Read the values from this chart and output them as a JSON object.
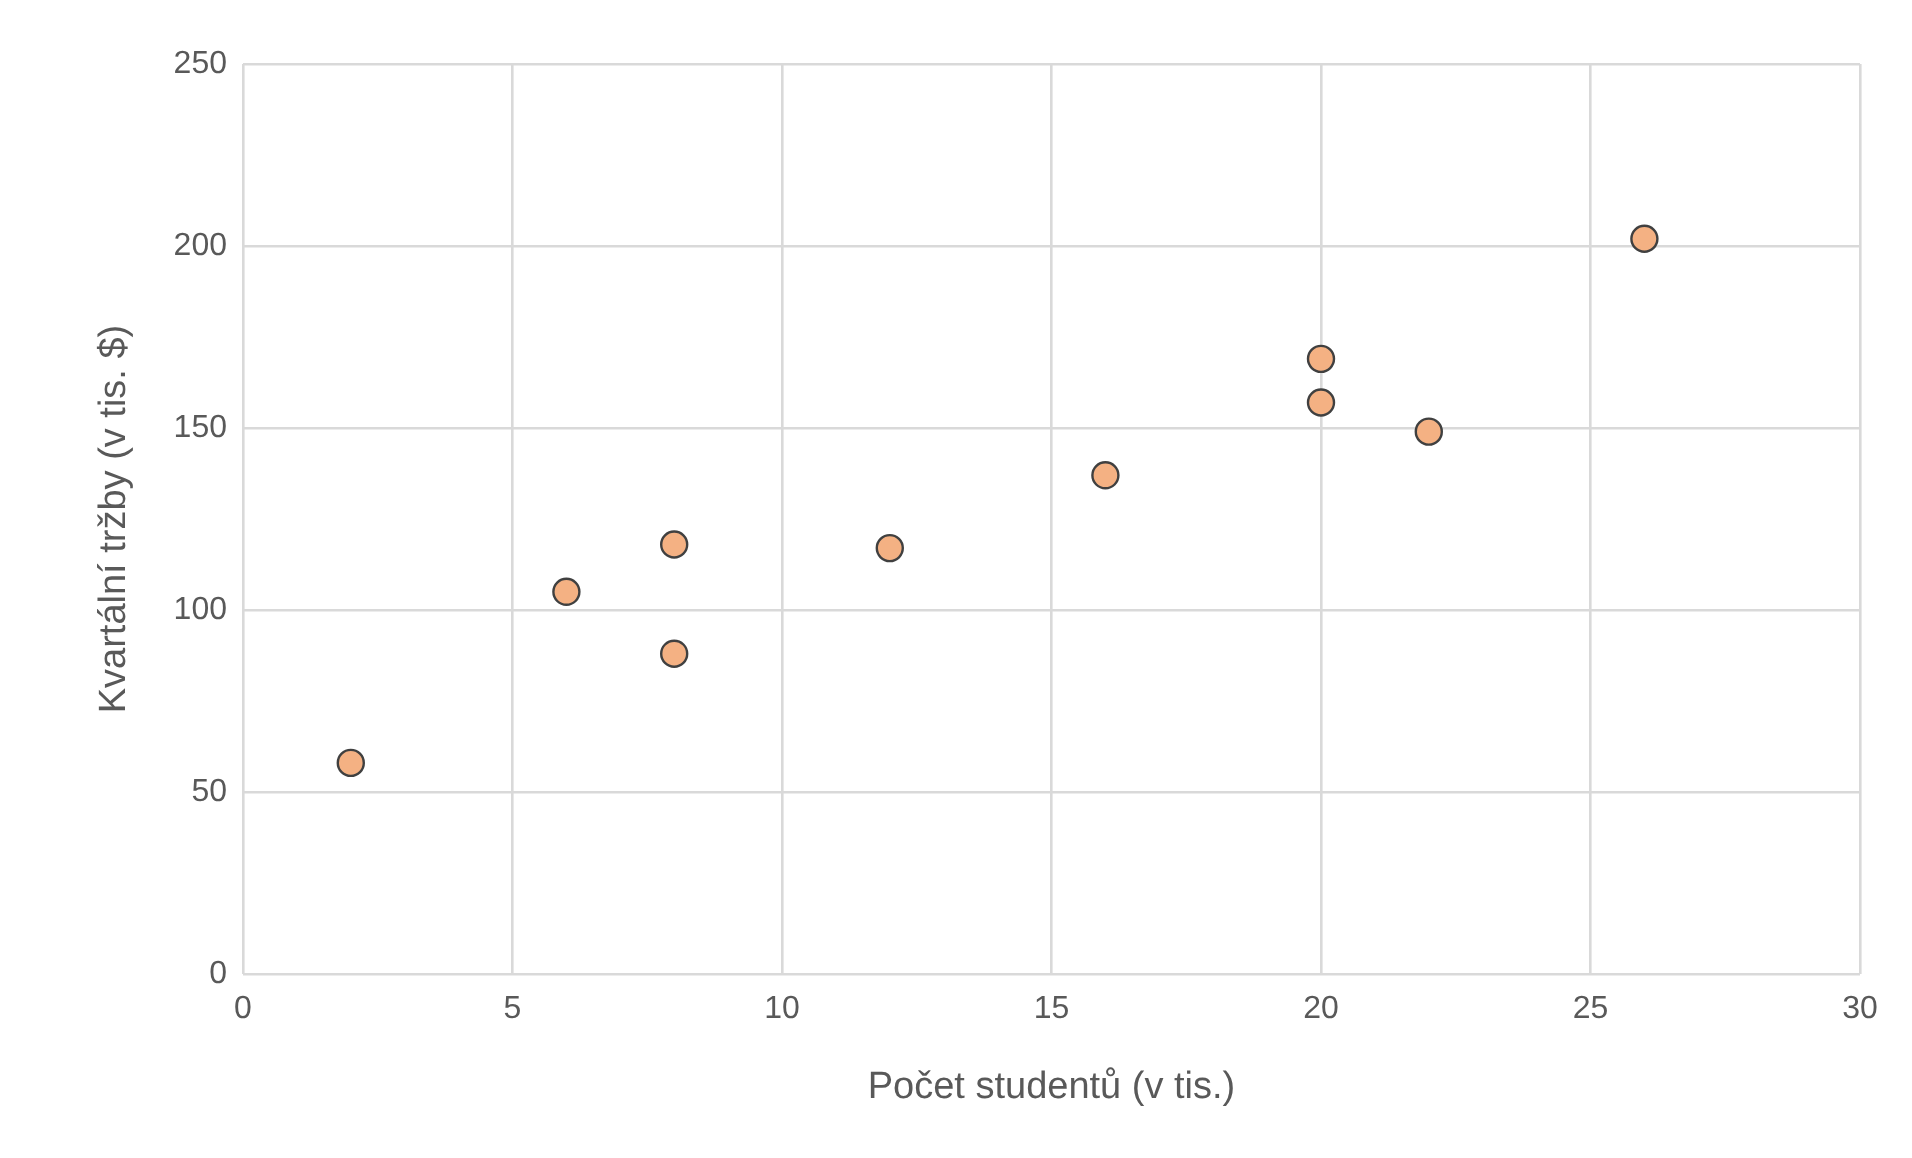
{
  "chart_data": {
    "type": "scatter",
    "xlabel": "Počet studentů (v tis.)",
    "ylabel": "Kvartální tržby (v tis. $)",
    "x": [
      2,
      6,
      8,
      8,
      12,
      16,
      20,
      20,
      22,
      26
    ],
    "series": [
      {
        "color": "#f4b183",
        "values": [
          58,
          105,
          88,
          118,
          117,
          137,
          157,
          169,
          149,
          202
        ]
      }
    ],
    "xlim": [
      0,
      30
    ],
    "xticks": [
      0,
      5,
      10,
      15,
      20,
      25,
      30
    ],
    "ylim": [
      0,
      250
    ],
    "yticks": [
      0,
      50,
      100,
      150,
      200,
      250
    ],
    "grid": true,
    "legend": false,
    "marker": "circle"
  }
}
